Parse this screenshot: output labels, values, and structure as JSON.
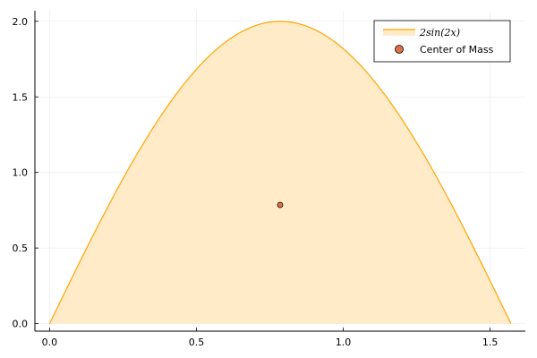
{
  "chart_data": {
    "type": "area",
    "title": "",
    "xlabel": "",
    "ylabel": "",
    "xlim": [
      -0.05,
      1.62
    ],
    "ylim": [
      -0.05,
      2.07
    ],
    "grid": true,
    "legend_placement": "top-right",
    "x_ticks": [
      "0.0",
      "0.5",
      "1.0",
      "1.5"
    ],
    "y_ticks": [
      "0.0",
      "0.5",
      "1.0",
      "1.5",
      "2.0"
    ],
    "series": [
      {
        "name": "2sin(2x)",
        "kind": "area",
        "function": "2*sin(2*x)",
        "x_range": [
          0,
          1.5708
        ],
        "color": "#ffa500",
        "fill_color": "#ffebc7"
      },
      {
        "name": "Center of Mass",
        "kind": "scatter",
        "points": [
          [
            0.785,
            0.785
          ]
        ],
        "color": "#e26f46"
      }
    ]
  }
}
